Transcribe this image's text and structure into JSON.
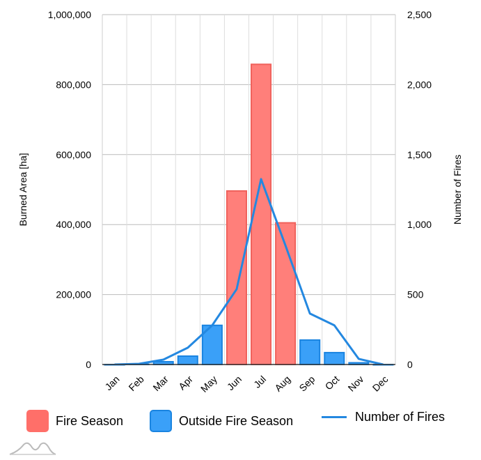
{
  "chart_data": {
    "type": "bar",
    "categories": [
      "Jan",
      "Feb",
      "Mar",
      "Apr",
      "May",
      "Jun",
      "Jul",
      "Aug",
      "Sep",
      "Oct",
      "Nov",
      "Dec"
    ],
    "series": [
      {
        "name": "Fire Season",
        "kind": "bar",
        "axis": "left",
        "color": "#ff6f69",
        "values": [
          null,
          null,
          null,
          null,
          null,
          496000,
          858000,
          405000,
          null,
          null,
          null,
          null
        ]
      },
      {
        "name": "Outside Fire Season",
        "kind": "bar",
        "axis": "left",
        "color": "#2196f3",
        "values": [
          0,
          1000,
          8000,
          24000,
          112000,
          null,
          null,
          null,
          70000,
          34000,
          5000,
          0
        ]
      },
      {
        "name": "Number of Fires",
        "kind": "line",
        "axis": "right",
        "color": "#2488e0",
        "values": [
          0,
          5,
          35,
          120,
          280,
          538,
          1325,
          850,
          364,
          280,
          40,
          0
        ]
      }
    ],
    "ylabel": "Burned Area [ha]",
    "y2label": "Number of Fires",
    "ylim": [
      0,
      1000000
    ],
    "y2lim": [
      0,
      2500
    ],
    "yticks": [
      "0",
      "200,000",
      "400,000",
      "600,000",
      "800,000",
      "1,000,000"
    ],
    "y2ticks": [
      "0",
      "500",
      "1,000",
      "1,500",
      "2,000",
      "2,500"
    ],
    "grid": true,
    "legend": "bottom"
  }
}
